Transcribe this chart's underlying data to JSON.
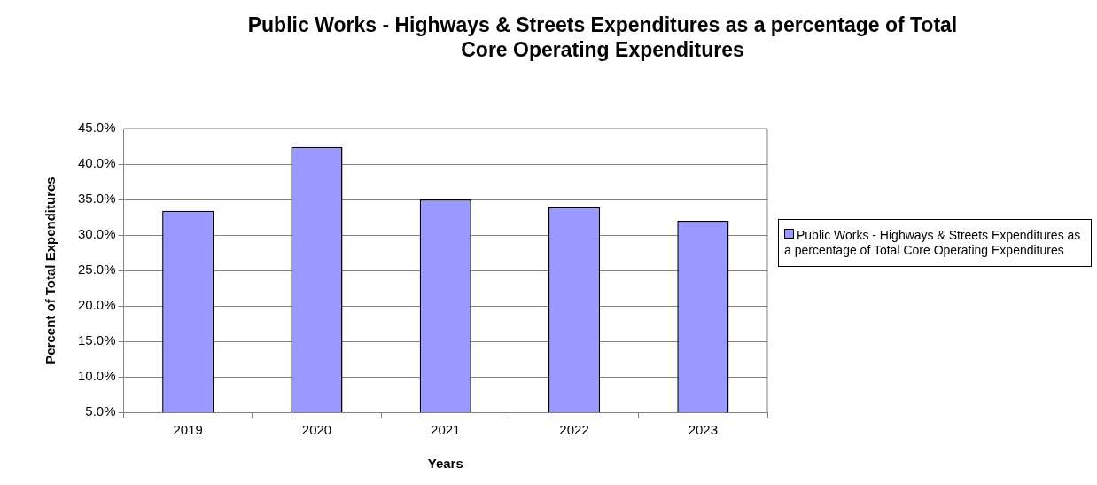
{
  "chart_data": {
    "type": "bar",
    "title": "Public Works - Highways & Streets Expenditures as a percentage of Total Core Operating Expenditures",
    "xlabel": "Years",
    "ylabel": "Percent of Total Expenditures",
    "categories": [
      "2019",
      "2020",
      "2021",
      "2022",
      "2023"
    ],
    "series": [
      {
        "name": "Public Works - Highways & Streets Expenditures as a percentage of Total Core Operating Expenditures",
        "color": "#9999ff",
        "values": [
          33.4,
          42.4,
          35.0,
          33.9,
          32.0
        ]
      }
    ],
    "ylim": [
      5,
      45
    ],
    "yticks": [
      {
        "value": 5,
        "label": "5.0%"
      },
      {
        "value": 10,
        "label": "10.0%"
      },
      {
        "value": 15,
        "label": "15.0%"
      },
      {
        "value": 20,
        "label": "20.0%"
      },
      {
        "value": 25,
        "label": "25.0%"
      },
      {
        "value": 30,
        "label": "30.0%"
      },
      {
        "value": 35,
        "label": "35.0%"
      },
      {
        "value": 40,
        "label": "40.0%"
      },
      {
        "value": 45,
        "label": "45.0%"
      }
    ],
    "grid": "y",
    "legend": "right"
  }
}
